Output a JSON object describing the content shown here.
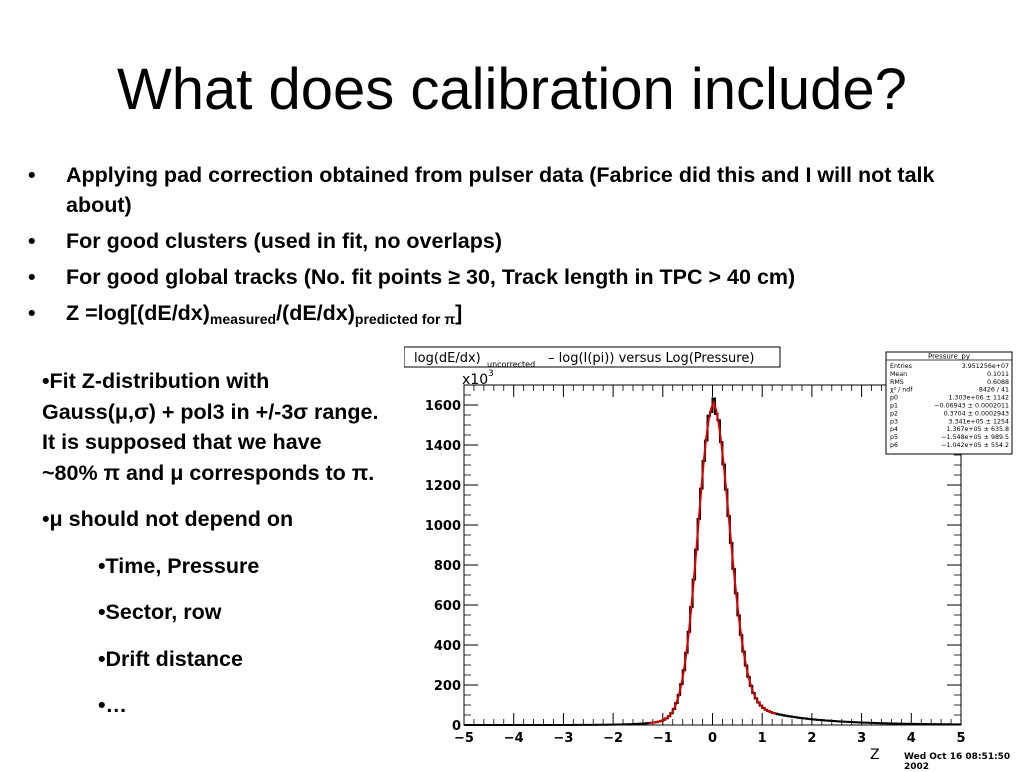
{
  "slide": {
    "title": "What does calibration include?",
    "bullets": [
      {
        "text": "Applying pad correction obtained from pulser data (Fabrice did this and I will not talk about)"
      },
      {
        "text": "For good clusters (used in fit, no overlaps)"
      },
      {
        "text": "For good global tracks (No. fit points ≥ 30, Track length in TPC > 40 cm)"
      },
      {
        "z_prefix": "Z =log[(dE/dx)",
        "z_sub1": "measured",
        "z_mid": "/(dE/dx)",
        "z_sub2": "predicted for π",
        "z_suffix": "]"
      }
    ],
    "bullet_glyph": "•",
    "left_text": {
      "p1": "•Fit Z-distribution with Gauss(μ,σ) + pol3 in +/-3σ range. It is supposed that we have ~80% π and μ corresponds to π.",
      "p2": "•μ should not depend on",
      "sub_items": [
        "•Time, Pressure",
        "•Sector, row",
        "•Drift distance",
        "•…"
      ]
    }
  },
  "chart_data": {
    "type": "bar",
    "title_main": "log(dE/dx)",
    "title_sub": "uncorrected",
    "title_rest": "– log(I(pi)) versus Log(Pressure)",
    "xlabel": "Z",
    "ylabel_multiplier": "x10",
    "ylabel_multiplier_exp": "3",
    "xlim": [
      -5,
      5
    ],
    "ylim": [
      0,
      1700
    ],
    "x_ticks": [
      "−5",
      "−4",
      "−3",
      "−2",
      "−1",
      "0",
      "1",
      "2",
      "3",
      "4",
      "5"
    ],
    "y_ticks": [
      "0",
      "200",
      "400",
      "600",
      "800",
      "1000",
      "1200",
      "1400",
      "1600"
    ],
    "histogram": {
      "bin_width": 0.05,
      "peak_x": 0.0,
      "peak_y": 1630,
      "note_shape": "sharp peak near 0 with wider right tail"
    },
    "fit_color": "#dd0000",
    "hist_color": "#000000",
    "stats_box": {
      "header": "Pressure_py",
      "rows": [
        [
          "Entries",
          "3.951256e+07"
        ],
        [
          "Mean",
          "0.1011"
        ],
        [
          "RMS",
          "0.6088"
        ],
        [
          "χ² / ndf",
          "8426 / 41"
        ],
        [
          "p0",
          "1.303e+06 ± 1142"
        ],
        [
          "p1",
          "−0.06943 ± 0.0002011"
        ],
        [
          "p2",
          "0.3704 ± 0.0002943"
        ],
        [
          "p3",
          "3.341e+05 ± 1254"
        ],
        [
          "p4",
          "1.367e+05 ± 635.8"
        ],
        [
          "p5",
          "−1.548e+05 ± 989.5"
        ],
        [
          "p6",
          "−1.042e+05 ± 554.2"
        ]
      ]
    },
    "footer": "Wed Oct 16 08:51:50 2002"
  }
}
